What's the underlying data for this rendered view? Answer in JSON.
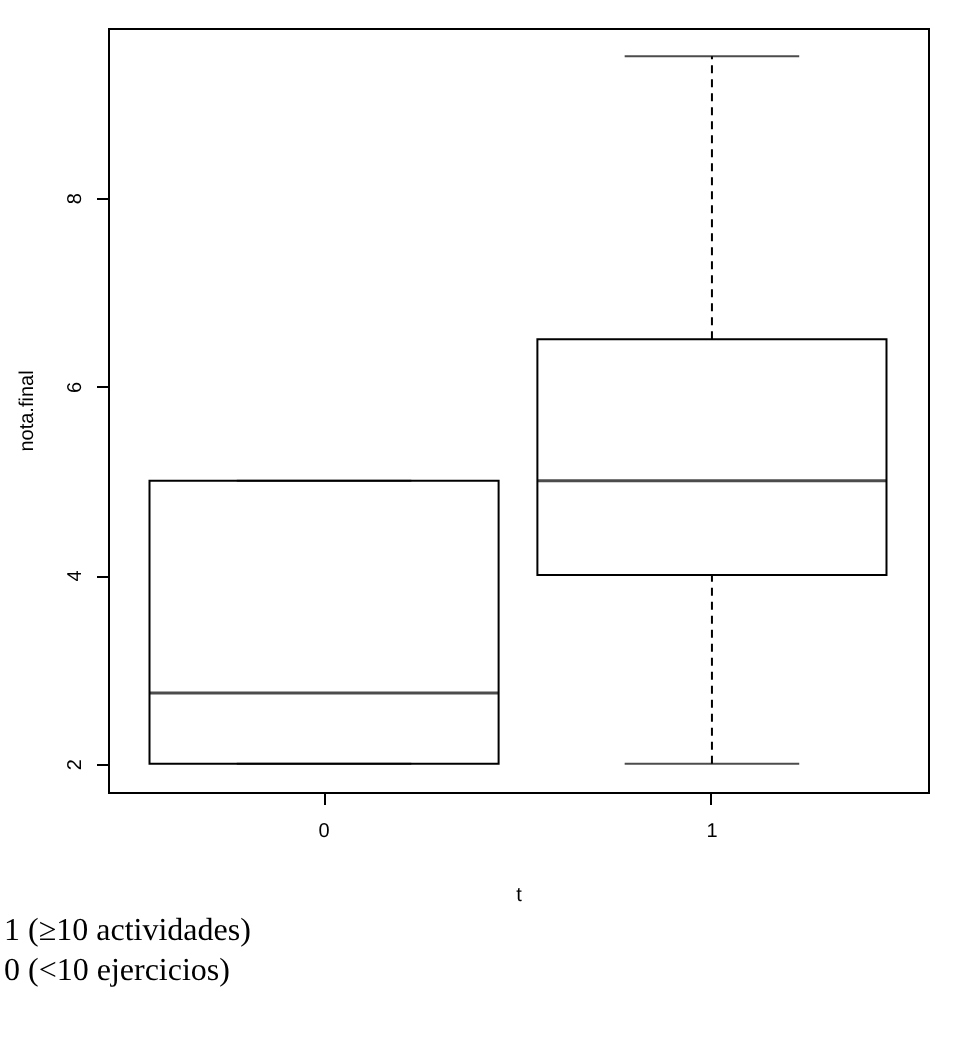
{
  "chart_data": {
    "type": "box",
    "xlabel": "t",
    "ylabel": "nota.final",
    "categories": [
      "0",
      "1"
    ],
    "boxes": [
      {
        "low": 2,
        "q1": 2,
        "median": 2.75,
        "q3": 5,
        "high": 5
      },
      {
        "low": 2,
        "q1": 4,
        "median": 5,
        "q3": 6.5,
        "high": 9.5
      }
    ],
    "ylim": [
      1.7,
      9.8
    ],
    "yticks": [
      2,
      4,
      6,
      8
    ],
    "grid": false,
    "line_style": "dashed",
    "annotations": [
      "1 (≥10 actividades)",
      "0 (<10 ejercicios)"
    ]
  }
}
